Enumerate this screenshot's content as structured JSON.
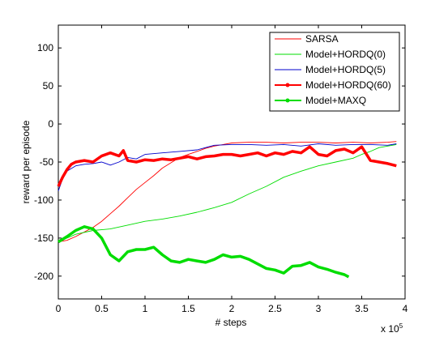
{
  "chart_data": {
    "type": "line",
    "title": "",
    "xlabel": "# steps",
    "ylabel": "reward per episode",
    "x_multiplier_label": {
      "base": "x 10",
      "exponent": "5"
    },
    "xlim": [
      0,
      4
    ],
    "ylim": [
      -230,
      130
    ],
    "xticks": [
      "0",
      "0.5",
      "1",
      "1.5",
      "2",
      "2.5",
      "3",
      "3.5",
      "4"
    ],
    "yticks": [
      "100",
      "50",
      "0",
      "-50",
      "-100",
      "-150",
      "-200"
    ],
    "grid": false,
    "legend_position": "top-right",
    "series": [
      {
        "name": "SARSA",
        "color": "#ff0000",
        "style": "thin",
        "x": [
          0,
          0.1,
          0.2,
          0.3,
          0.4,
          0.5,
          0.6,
          0.7,
          0.8,
          0.9,
          1.0,
          1.1,
          1.2,
          1.3,
          1.4,
          1.5,
          1.6,
          1.7,
          1.8,
          1.9,
          2.0,
          2.2,
          2.4,
          2.6,
          2.8,
          3.0,
          3.2,
          3.4,
          3.6,
          3.8,
          3.9
        ],
        "y": [
          -155,
          -153,
          -148,
          -142,
          -136,
          -128,
          -118,
          -108,
          -97,
          -86,
          -77,
          -68,
          -58,
          -51,
          -44,
          -40,
          -36,
          -32,
          -29,
          -27,
          -25,
          -24,
          -24,
          -25,
          -24,
          -24,
          -25,
          -24,
          -25,
          -24,
          -23
        ]
      },
      {
        "name": "Model+HORDQ(0)",
        "color": "#00dd00",
        "style": "thin",
        "x": [
          0,
          0.2,
          0.4,
          0.6,
          0.8,
          1.0,
          1.2,
          1.4,
          1.6,
          1.8,
          2.0,
          2.2,
          2.4,
          2.6,
          2.8,
          3.0,
          3.2,
          3.4,
          3.5,
          3.6,
          3.7,
          3.8,
          3.9
        ],
        "y": [
          -155,
          -145,
          -140,
          -138,
          -133,
          -128,
          -125,
          -121,
          -116,
          -110,
          -103,
          -92,
          -82,
          -70,
          -62,
          -55,
          -50,
          -45,
          -40,
          -36,
          -31,
          -29,
          -27
        ]
      },
      {
        "name": "Model+HORDQ(5)",
        "color": "#0000cc",
        "style": "thin",
        "x": [
          0,
          0.05,
          0.1,
          0.2,
          0.3,
          0.4,
          0.5,
          0.6,
          0.7,
          0.8,
          0.9,
          1.0,
          1.2,
          1.4,
          1.6,
          1.8,
          2.0,
          2.2,
          2.4,
          2.6,
          2.8,
          3.0,
          3.2,
          3.4,
          3.6,
          3.8,
          3.9
        ],
        "y": [
          -88,
          -72,
          -62,
          -55,
          -53,
          -52,
          -50,
          -54,
          -50,
          -44,
          -46,
          -40,
          -38,
          -36,
          -34,
          -28,
          -27,
          -27,
          -28,
          -27,
          -29,
          -26,
          -28,
          -27,
          -27,
          -28,
          -26
        ]
      },
      {
        "name": "Model+HORDQ(60)",
        "color": "#ff0000",
        "style": "thick",
        "x": [
          0,
          0.05,
          0.1,
          0.15,
          0.2,
          0.3,
          0.4,
          0.5,
          0.6,
          0.7,
          0.75,
          0.8,
          0.9,
          1.0,
          1.1,
          1.2,
          1.3,
          1.4,
          1.5,
          1.6,
          1.7,
          1.8,
          1.9,
          2.0,
          2.1,
          2.2,
          2.3,
          2.4,
          2.5,
          2.6,
          2.7,
          2.8,
          2.9,
          3.0,
          3.1,
          3.2,
          3.3,
          3.4,
          3.5,
          3.6,
          3.7,
          3.8,
          3.9
        ],
        "y": [
          -82,
          -70,
          -60,
          -53,
          -50,
          -48,
          -50,
          -42,
          -38,
          -42,
          -35,
          -48,
          -50,
          -47,
          -48,
          -46,
          -47,
          -45,
          -43,
          -46,
          -43,
          -42,
          -40,
          -40,
          -42,
          -40,
          -38,
          -42,
          -38,
          -40,
          -36,
          -38,
          -30,
          -40,
          -42,
          -35,
          -33,
          -38,
          -30,
          -48,
          -50,
          -52,
          -55
        ]
      },
      {
        "name": "Model+MAXQ",
        "color": "#00dd00",
        "style": "thick",
        "x": [
          0,
          0.1,
          0.2,
          0.3,
          0.4,
          0.5,
          0.6,
          0.7,
          0.8,
          0.9,
          1.0,
          1.1,
          1.2,
          1.3,
          1.4,
          1.5,
          1.6,
          1.7,
          1.8,
          1.9,
          2.0,
          2.1,
          2.2,
          2.3,
          2.4,
          2.5,
          2.6,
          2.7,
          2.8,
          2.9,
          3.0,
          3.1,
          3.2,
          3.3,
          3.35
        ],
        "y": [
          -155,
          -148,
          -140,
          -135,
          -138,
          -150,
          -172,
          -180,
          -168,
          -165,
          -165,
          -162,
          -172,
          -180,
          -182,
          -178,
          -180,
          -182,
          -178,
          -172,
          -175,
          -174,
          -178,
          -184,
          -190,
          -192,
          -196,
          -187,
          -186,
          -182,
          -188,
          -191,
          -195,
          -198,
          -201
        ]
      }
    ]
  }
}
